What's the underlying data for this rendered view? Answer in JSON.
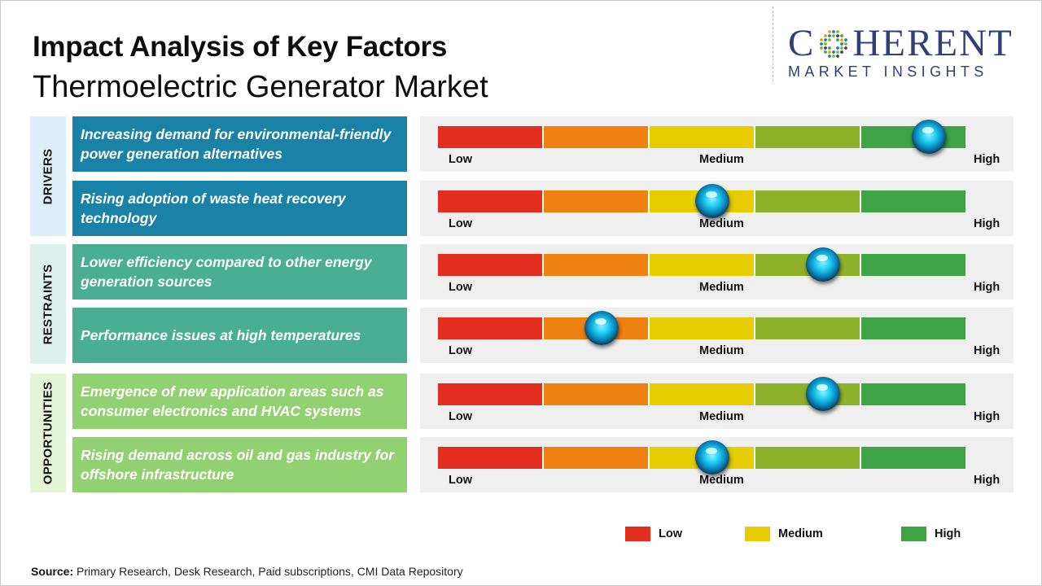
{
  "title": "Impact Analysis of Key Factors",
  "subtitle": "Thermoelectric Generator Market",
  "logo": {
    "name": "COHERENT",
    "tagline": "MARKET INSIGHTS",
    "color": "#2e3f7a"
  },
  "scale_colors": [
    "#e32d1f",
    "#ee8110",
    "#e6cc00",
    "#8fb12a",
    "#3da345"
  ],
  "categories": [
    {
      "label": "DRIVERS",
      "bg": "#dceef7",
      "factor_bg": "#1a81a7"
    },
    {
      "label": "RESTRAINTS",
      "bg": "#dcf1ec",
      "factor_bg": "#4aae92"
    },
    {
      "label": "OPPORTUNITIES",
      "bg": "#e4f4d6",
      "factor_bg": "#91d171"
    }
  ],
  "chart_data": {
    "type": "bar",
    "scale": [
      "Low",
      "Medium",
      "High"
    ],
    "scale_labels": {
      "low": "Low",
      "medium": "Medium",
      "high": "High"
    },
    "range": [
      0,
      1
    ],
    "factors": [
      {
        "category": "DRIVERS",
        "text": "Increasing demand for environmental-friendly power generation alternatives",
        "impact": 0.93
      },
      {
        "category": "DRIVERS",
        "text": "Rising adoption of waste heat recovery technology",
        "impact": 0.52
      },
      {
        "category": "RESTRAINTS",
        "text": "Lower efficiency compared to other energy generation sources",
        "impact": 0.73
      },
      {
        "category": "RESTRAINTS",
        "text": "Performance issues at high temperatures",
        "impact": 0.31
      },
      {
        "category": "OPPORTUNITIES",
        "text": "Emergence of new application areas such as consumer electronics and HVAC systems",
        "impact": 0.73
      },
      {
        "category": "OPPORTUNITIES",
        "text": "Rising demand across oil and gas industry for offshore infrastructure",
        "impact": 0.52
      }
    ],
    "legend": [
      {
        "label": "Low",
        "color": "#e32d1f"
      },
      {
        "label": "Medium",
        "color": "#e6cc00"
      },
      {
        "label": "High",
        "color": "#3da345"
      }
    ]
  },
  "source": {
    "label": "Source:",
    "text": " Primary Research, Desk Research, Paid subscriptions, CMI Data Repository"
  }
}
